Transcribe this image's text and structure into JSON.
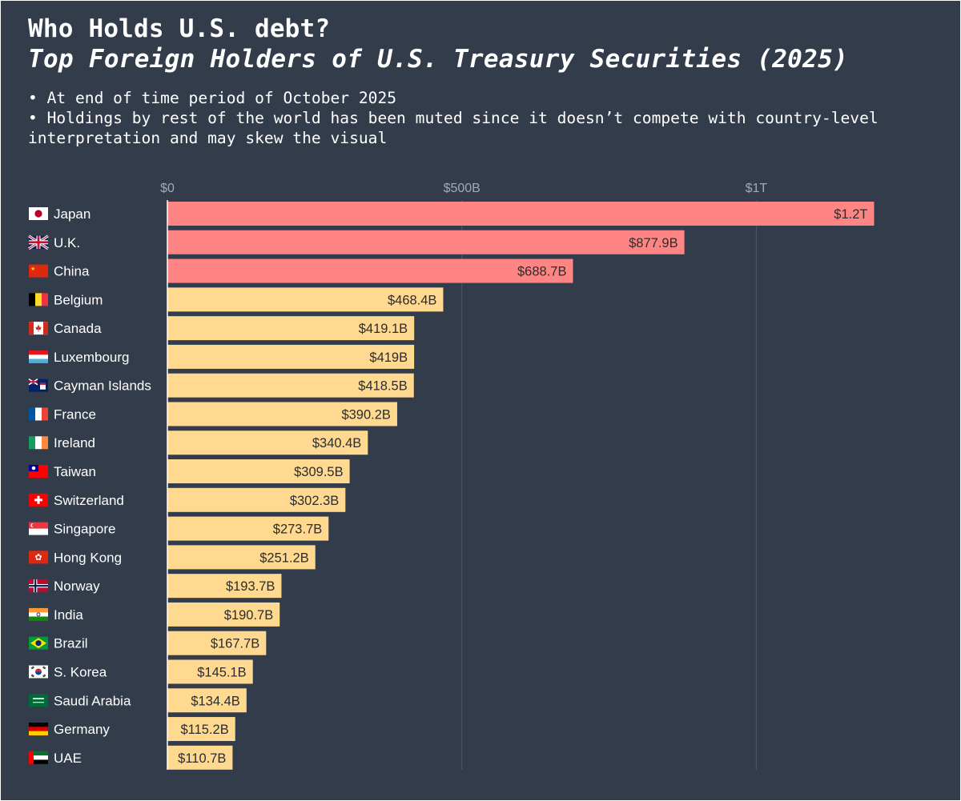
{
  "header": {
    "title": "Who Holds U.S. debt?",
    "subtitle": "Top Foreign Holders of U.S. Treasury Securities (2025)",
    "notes": [
      "• At end of time period of October 2025",
      "• Holdings by rest of the world has been muted since it doesn’t compete with country-level interpretation and may skew the visual"
    ]
  },
  "colors": {
    "background": "#333c4b",
    "highlight_bar": "#ff8585",
    "regular_bar": "#ffd990",
    "gridline": "#4a5364",
    "tick_text": "#a3aab5",
    "label_text": "#ffffff",
    "bar_text": "#2c2c2c"
  },
  "chart_data": {
    "type": "bar",
    "orientation": "horizontal",
    "title": "Top Foreign Holders of U.S. Treasury Securities (2025)",
    "xlabel": "",
    "ylabel": "",
    "unit": "USD billions",
    "xlim": [
      0,
      1250
    ],
    "xticks": [
      {
        "value": 0,
        "label": "$0"
      },
      {
        "value": 500,
        "label": "$500B"
      },
      {
        "value": 1000,
        "label": "$1T"
      }
    ],
    "grid": true,
    "highlighted_top_n": 3,
    "categories": [
      "Japan",
      "U.K.",
      "China",
      "Belgium",
      "Canada",
      "Luxembourg",
      "Cayman Islands",
      "France",
      "Ireland",
      "Taiwan",
      "Switzerland",
      "Singapore",
      "Hong Kong",
      "Norway",
      "India",
      "Brazil",
      "S. Korea",
      "Saudi Arabia",
      "Germany",
      "UAE"
    ],
    "flags": [
      "japan-flag-icon",
      "uk-flag-icon",
      "china-flag-icon",
      "belgium-flag-icon",
      "canada-flag-icon",
      "luxembourg-flag-icon",
      "cayman-islands-flag-icon",
      "france-flag-icon",
      "ireland-flag-icon",
      "taiwan-flag-icon",
      "switzerland-flag-icon",
      "singapore-flag-icon",
      "hong-kong-flag-icon",
      "norway-flag-icon",
      "india-flag-icon",
      "brazil-flag-icon",
      "south-korea-flag-icon",
      "saudi-arabia-flag-icon",
      "germany-flag-icon",
      "uae-flag-icon"
    ],
    "values": [
      1200,
      877.9,
      688.7,
      468.4,
      419.1,
      419,
      418.5,
      390.2,
      340.4,
      309.5,
      302.3,
      273.7,
      251.2,
      193.7,
      190.7,
      167.7,
      145.1,
      134.4,
      115.2,
      110.7
    ],
    "value_labels": [
      "$1.2T",
      "$877.9B",
      "$688.7B",
      "$468.4B",
      "$419.1B",
      "$419B",
      "$418.5B",
      "$390.2B",
      "$340.4B",
      "$309.5B",
      "$302.3B",
      "$273.7B",
      "$251.2B",
      "$193.7B",
      "$190.7B",
      "$167.7B",
      "$145.1B",
      "$134.4B",
      "$115.2B",
      "$110.7B"
    ]
  }
}
